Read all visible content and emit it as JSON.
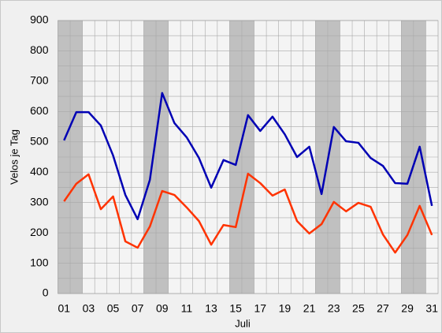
{
  "chart_data": {
    "type": "line",
    "x_label": "Juli",
    "y_label": "Velos je Tag",
    "categories": [
      "01",
      null,
      "03",
      null,
      "05",
      null,
      "07",
      null,
      "09",
      null,
      "11",
      null,
      "13",
      null,
      "15",
      null,
      "17",
      null,
      "19",
      null,
      "21",
      null,
      "23",
      null,
      "25",
      null,
      "27",
      null,
      "29",
      null,
      "31"
    ],
    "series": [
      {
        "color": "#0000b4",
        "values": [
          505,
          598,
          598,
          554,
          455,
          325,
          245,
          375,
          661,
          562,
          515,
          447,
          349,
          440,
          424,
          588,
          536,
          583,
          525,
          450,
          484,
          328,
          549,
          502,
          497,
          447,
          421,
          364,
          362,
          484,
          289
        ]
      },
      {
        "color": "#ff3300",
        "values": [
          304,
          362,
          393,
          278,
          320,
          172,
          151,
          221,
          338,
          325,
          284,
          239,
          161,
          226,
          219,
          395,
          364,
          323,
          343,
          239,
          198,
          229,
          302,
          271,
          299,
          286,
          195,
          135,
          193,
          289,
          193
        ]
      }
    ],
    "ylim": [
      0,
      900
    ],
    "yticks": [
      0,
      100,
      200,
      300,
      400,
      500,
      600,
      700,
      800,
      900
    ],
    "minor_yticks": [
      50,
      150,
      250,
      350,
      450,
      550,
      650,
      750,
      850
    ],
    "shaded": [
      0,
      1,
      7,
      8,
      14,
      15,
      21,
      22,
      28,
      29
    ],
    "grid": true
  }
}
